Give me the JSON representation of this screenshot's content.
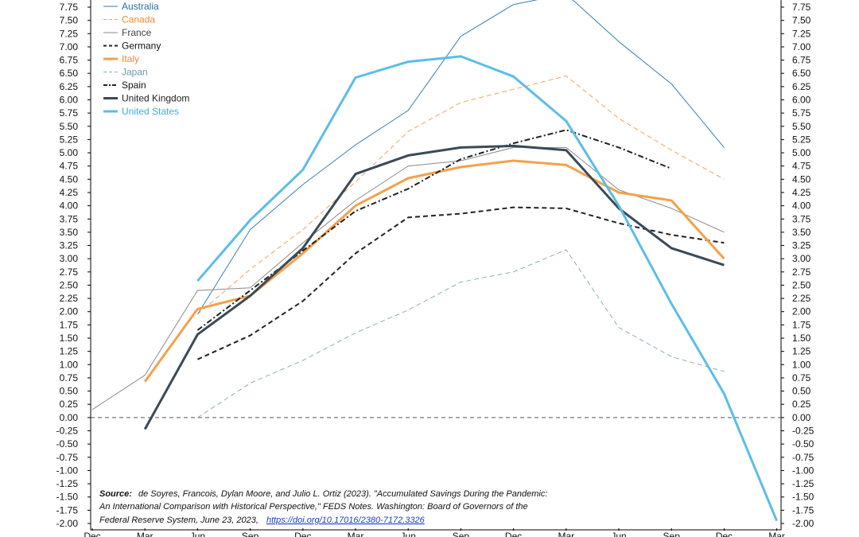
{
  "chart_data": {
    "type": "line",
    "title": "",
    "xlabel": "",
    "ylabel": "",
    "x": [
      "Dec",
      "Mar",
      "Jun",
      "Sep",
      "Dec",
      "Mar",
      "Jun",
      "Sep",
      "Dec",
      "Mar",
      "Jun",
      "Sep",
      "Dec",
      "Mar"
    ],
    "ylim": [
      -2.0,
      8.0
    ],
    "ytick_step": 0.25,
    "y_ticks_left": [
      "7.75",
      "7.50",
      "7.25",
      "7.00",
      "6.75",
      "6.50",
      "6.25",
      "6.00",
      "5.75",
      "5.50",
      "5.25",
      "5.00",
      "4.75",
      "4.50",
      "4.25",
      "4.00",
      "3.75",
      "3.50",
      "3.25",
      "3.00",
      "2.75",
      "2.50",
      "2.25",
      "2.00",
      "1.75",
      "1.50",
      "1.25",
      "1.00",
      "0.75",
      "0.50",
      "0.25",
      "0.00",
      "-0.25",
      "-0.50",
      "-0.75",
      "-1.00",
      "-1.25",
      "-1.50",
      "-1.75",
      "-2.00"
    ],
    "y_ticks_right": [
      "7.75",
      "7.50",
      "7.25",
      "7.00",
      "6.75",
      "6.50",
      "6.25",
      "6.00",
      "5.75",
      "5.50",
      "5.25",
      "5.00",
      "4.75",
      "4.50",
      "4.25",
      "4.00",
      "3.75",
      "3.50",
      "3.25",
      "3.00",
      "2.75",
      "2.50",
      "2.25",
      "2.00",
      "1.75",
      "1.50",
      "1.25",
      "1.00",
      "0.75",
      "0.50",
      "0.25",
      "0.00",
      "-0.25",
      "-0.50",
      "-0.75",
      "-1.00",
      "-1.25",
      "-1.50",
      "-1.75",
      "-2.00"
    ],
    "zero_line": true,
    "grid": false,
    "legend_position": "top-left",
    "series": [
      {
        "name": "Australia",
        "color": "#3a7fb0",
        "style": "solid",
        "width": 1,
        "values": [
          null,
          null,
          1.95,
          3.55,
          4.4,
          5.15,
          5.8,
          7.2,
          7.8,
          8.0,
          7.1,
          6.3,
          5.1,
          null
        ]
      },
      {
        "name": "Canada",
        "color": "#f5a05a",
        "style": "dash",
        "width": 1,
        "values": [
          null,
          null,
          1.95,
          2.8,
          3.55,
          4.45,
          5.4,
          5.95,
          6.2,
          6.45,
          5.65,
          5.05,
          4.5,
          null
        ]
      },
      {
        "name": "France",
        "color": "#8a8a8a",
        "style": "solid",
        "width": 1,
        "values": [
          0.15,
          0.8,
          2.4,
          2.45,
          3.3,
          4.1,
          4.75,
          4.85,
          5.1,
          5.1,
          4.3,
          3.95,
          3.5,
          null
        ]
      },
      {
        "name": "Germany",
        "color": "#222222",
        "style": "dash",
        "width": 2,
        "values": [
          null,
          null,
          1.1,
          1.55,
          2.2,
          3.1,
          3.78,
          3.85,
          3.97,
          3.95,
          3.67,
          3.45,
          3.3,
          null
        ]
      },
      {
        "name": "Italy",
        "color": "#f5a04a",
        "style": "solid",
        "width": 3,
        "values": [
          null,
          0.68,
          2.05,
          2.3,
          3.1,
          4.0,
          4.52,
          4.73,
          4.85,
          4.77,
          4.25,
          4.1,
          3.0,
          null
        ]
      },
      {
        "name": "Japan",
        "color": "#8ab0bb",
        "style": "dash",
        "width": 1,
        "values": [
          null,
          null,
          0.0,
          0.65,
          1.08,
          1.6,
          2.03,
          2.56,
          2.75,
          3.17,
          1.7,
          1.15,
          0.87,
          null
        ]
      },
      {
        "name": "Spain",
        "color": "#222222",
        "style": "dashdot",
        "width": 2,
        "values": [
          null,
          null,
          1.65,
          2.4,
          3.15,
          3.9,
          4.32,
          4.88,
          5.18,
          5.43,
          5.1,
          4.7,
          null,
          null
        ]
      },
      {
        "name": "United Kingdom",
        "color": "#3a4a56",
        "style": "solid",
        "width": 3,
        "values": [
          null,
          -0.22,
          1.57,
          2.3,
          3.2,
          4.6,
          4.95,
          5.1,
          5.13,
          5.05,
          3.95,
          3.2,
          2.88,
          null
        ]
      },
      {
        "name": "United States",
        "color": "#5bbde8",
        "style": "solid",
        "width": 3,
        "values": [
          null,
          null,
          2.58,
          3.73,
          4.68,
          6.42,
          6.72,
          6.82,
          6.44,
          5.6,
          4.0,
          2.15,
          0.45,
          -1.95
        ]
      }
    ],
    "source": {
      "label": "Source:",
      "line1": "de Soyres, Francois, Dylan Moore, and Julio L. Ortiz (2023). \"Accumulated Savings During the Pandemic:",
      "line2": "An International Comparison with Historical Perspective,\" FEDS Notes. Washington: Board of Governors of the",
      "line3": "Federal Reserve System, June 23, 2023,",
      "link": "https://doi.org/10.17016/2380-7172.3326"
    }
  }
}
